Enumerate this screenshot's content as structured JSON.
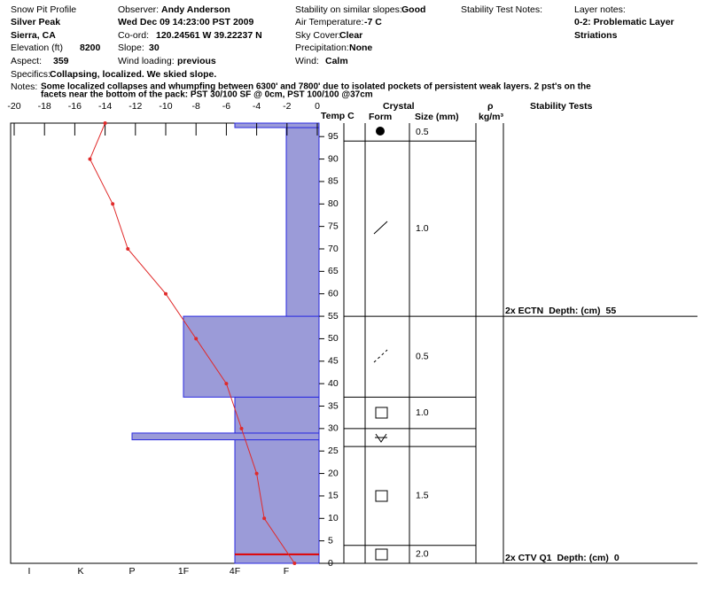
{
  "header": {
    "title": "Snow Pit Profile",
    "location": "Silver Peak",
    "region": "Sierra, CA",
    "elevation_label": "Elevation (ft)",
    "elevation": "8200",
    "aspect_label": "Aspect:",
    "aspect": "359",
    "observer_label": "Observer:",
    "observer": "Andy Anderson",
    "date": "Wed Dec 09 14:23:00 PST 2009",
    "coord_label": "Co-ord:",
    "coord": "120.24561 W 39.22237 N",
    "slope_label": "Slope:",
    "slope": "30",
    "wind_loading_label": "Wind loading:",
    "wind_loading": "previous",
    "stability_label": "Stability on similar slopes:",
    "stability": "Good",
    "air_temp_label": "Air Temperature:",
    "air_temp": "-7 C",
    "sky_label": "Sky Cover:",
    "sky": "Clear",
    "precip_label": "Precipitation:",
    "precip": "None",
    "wind_label": "Wind:",
    "wind": "Calm",
    "stability_notes_label": "Stability Test Notes:",
    "layer_notes_label": "Layer notes:",
    "layer_notes": [
      "0-2: Problematic Layer",
      "Striations"
    ],
    "specifics_label": "Specifics:",
    "specifics": "Collapsing, localized. We skied slope.",
    "notes_label": "Notes:",
    "notes": [
      "Some localized collapses and whumpfing between 6300' and 7800' due to isolated pockets of persistent weak layers. 2 pst's on the",
      "facets near the bottom of the pack: PST 30/100 SF @ 0cm,  PST 100/100 @37cm"
    ]
  },
  "chart_data": {
    "type": "snow_profile",
    "x_label": "Temp C",
    "xlim": [
      -20,
      0
    ],
    "xticks": [
      -20,
      -18,
      -16,
      -14,
      -12,
      -10,
      -8,
      -6,
      -4,
      -2,
      0
    ],
    "ylim": [
      0,
      98
    ],
    "yticks": [
      0,
      5,
      10,
      15,
      20,
      25,
      30,
      35,
      40,
      45,
      50,
      55,
      60,
      65,
      70,
      75,
      80,
      85,
      90,
      95
    ],
    "temperature": {
      "color": "#e02a2a",
      "depth": [
        98,
        90,
        80,
        70,
        60,
        50,
        40,
        30,
        20,
        10,
        0
      ],
      "temp": [
        -14,
        -15,
        -13.5,
        -12.5,
        -10,
        -8,
        -6,
        -5,
        -4,
        -3.5,
        -1.5
      ]
    },
    "hardness_categories": [
      "I",
      "K",
      "P",
      "1F",
      "4F",
      "F"
    ],
    "hardness_color": "#9b9bd8",
    "hardness_edge": "#2a2ae0",
    "hardness_layers": [
      {
        "bottom": 0,
        "top": 27.5,
        "hardness": "4F"
      },
      {
        "bottom": 27.5,
        "top": 29,
        "hardness": "P"
      },
      {
        "bottom": 29,
        "top": 37,
        "hardness": "4F"
      },
      {
        "bottom": 37,
        "top": 55,
        "hardness": "1F"
      },
      {
        "bottom": 55,
        "top": 97,
        "hardness": "F"
      },
      {
        "bottom": 97,
        "top": 98,
        "hardness": "4F"
      }
    ],
    "problem_layer": {
      "bottom": 0,
      "top": 2,
      "color": "#e00000"
    },
    "crystal_headers": {
      "crystal": "Crystal",
      "form": "Form",
      "size": "Size (mm)",
      "rho": "ρ",
      "rho_unit": "kg/m³",
      "stability": "Stability Tests"
    },
    "crystal_layers": [
      {
        "bottom": 94,
        "top": 98,
        "size": "0.5"
      },
      {
        "bottom": 55,
        "top": 94,
        "size": "1.0"
      },
      {
        "bottom": 37,
        "top": 55,
        "size": "0.5"
      },
      {
        "bottom": 30,
        "top": 37,
        "size": "1.0"
      },
      {
        "bottom": 26,
        "top": 30
      },
      {
        "bottom": 4,
        "top": 26,
        "size": "1.5"
      },
      {
        "bottom": 0,
        "top": 4,
        "size": "2.0"
      }
    ],
    "stability_tests": [
      {
        "test": "2x ECTN",
        "depth_label": "Depth: (cm)",
        "depth": 55
      },
      {
        "test": "2x CTV Q1",
        "depth_label": "Depth: (cm)",
        "depth": 0
      }
    ]
  }
}
